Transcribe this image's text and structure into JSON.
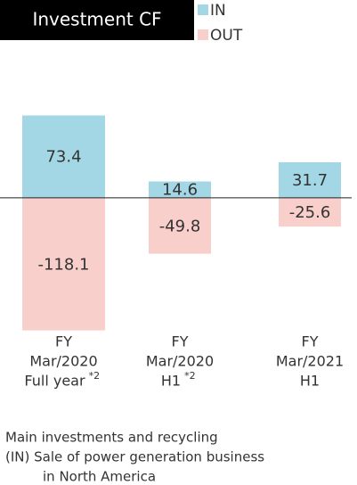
{
  "chart_data": {
    "type": "bar",
    "title": "Investment CF",
    "categories": [
      [
        "FY",
        "Mar/2020",
        "Full year"
      ],
      [
        "FY",
        "Mar/2020",
        "H1"
      ],
      [
        "FY",
        "Mar/2021",
        "H1"
      ]
    ],
    "category_notes": [
      "*2",
      "*2",
      null
    ],
    "series": [
      {
        "name": "IN",
        "color": "#a3d7e5",
        "values": [
          73.4,
          14.6,
          31.7
        ]
      },
      {
        "name": "OUT",
        "color": "#f8cfcb",
        "values": [
          -118.1,
          -49.8,
          -25.6
        ]
      }
    ],
    "ylim": [
      -120,
      75
    ],
    "notes": [
      "Main investments and recycling",
      "(IN) Sale of power generation business",
      "in North America"
    ]
  }
}
